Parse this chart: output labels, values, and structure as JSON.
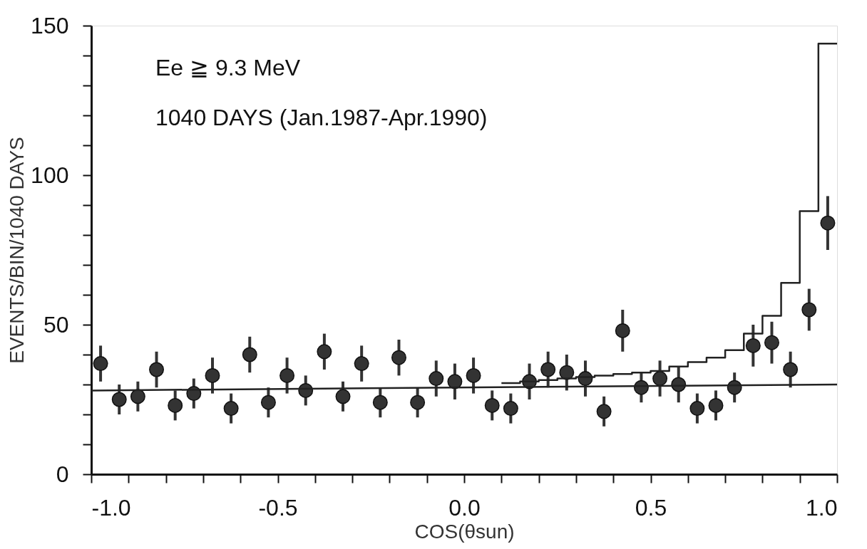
{
  "chart_data": {
    "type": "scatter",
    "xlabel": "COS(θsun)",
    "ylabel": "EVENTS/BIN/1040 DAYS",
    "annotations": [
      "Ee ≧ 9.3 MeV",
      "1040 DAYS (Jan.1987-Apr.1990)"
    ],
    "xlim": [
      -1.0,
      1.0
    ],
    "ylim": [
      0,
      150
    ],
    "xticks": [
      {
        "value": -1.0,
        "label": "-1.0"
      },
      {
        "value": -0.9,
        "label": null
      },
      {
        "value": -0.8,
        "label": null
      },
      {
        "value": -0.7,
        "label": null
      },
      {
        "value": -0.6,
        "label": null
      },
      {
        "value": -0.5,
        "label": "-0.5"
      },
      {
        "value": -0.4,
        "label": null
      },
      {
        "value": -0.3,
        "label": null
      },
      {
        "value": -0.2,
        "label": null
      },
      {
        "value": -0.1,
        "label": null
      },
      {
        "value": 0.0,
        "label": "0.0"
      },
      {
        "value": 0.1,
        "label": null
      },
      {
        "value": 0.2,
        "label": null
      },
      {
        "value": 0.3,
        "label": null
      },
      {
        "value": 0.4,
        "label": null
      },
      {
        "value": 0.5,
        "label": "0.5"
      },
      {
        "value": 0.6,
        "label": null
      },
      {
        "value": 0.7,
        "label": null
      },
      {
        "value": 0.8,
        "label": null
      },
      {
        "value": 0.9,
        "label": null
      },
      {
        "value": 1.0,
        "label": "1.0"
      }
    ],
    "yticks": [
      0,
      {
        "value": 10,
        "label": null
      },
      {
        "value": 20,
        "label": null
      },
      {
        "value": 30,
        "label": null
      },
      {
        "value": 40,
        "label": null
      },
      50,
      {
        "value": 60,
        "label": null
      },
      {
        "value": 70,
        "label": null
      },
      {
        "value": 80,
        "label": null
      },
      {
        "value": 90,
        "label": null
      },
      100,
      {
        "value": 110,
        "label": null
      },
      {
        "value": 120,
        "label": null
      },
      {
        "value": 130,
        "label": null
      },
      {
        "value": 140,
        "label": null
      },
      150
    ],
    "grid": false,
    "marker": "circle",
    "series": [
      {
        "color": "#333333",
        "x": [
          -0.975,
          -0.925,
          -0.875,
          -0.825,
          -0.775,
          -0.725,
          -0.675,
          -0.625,
          -0.575,
          -0.525,
          -0.475,
          -0.425,
          -0.375,
          -0.325,
          -0.275,
          -0.225,
          -0.175,
          -0.125,
          -0.075,
          -0.025,
          0.025,
          0.075,
          0.125,
          0.175,
          0.225,
          0.275,
          0.325,
          0.375,
          0.425,
          0.475,
          0.525,
          0.575,
          0.625,
          0.675,
          0.725,
          0.775,
          0.825,
          0.875,
          0.925,
          0.975
        ],
        "values": [
          37,
          25,
          26,
          35,
          23,
          27,
          33,
          22,
          40,
          24,
          33,
          28,
          41,
          26,
          37,
          24,
          39,
          24,
          32,
          31,
          33,
          23,
          22,
          31,
          35,
          34,
          32,
          21,
          48,
          29,
          32,
          30,
          22,
          23,
          29,
          43,
          44,
          35,
          55,
          84
        ],
        "errors": [
          6,
          5,
          5,
          6,
          5,
          5,
          6,
          5,
          6,
          5,
          6,
          5,
          6,
          5,
          6,
          5,
          6,
          5,
          6,
          6,
          6,
          5,
          5,
          6,
          6,
          6,
          6,
          5,
          7,
          5,
          6,
          6,
          5,
          5,
          5,
          7,
          7,
          6,
          7,
          9
        ]
      },
      {
        "type": "line",
        "marker": "none",
        "color": "#222222",
        "x": [
          -1.0,
          1.0
        ],
        "values": [
          28,
          30
        ]
      },
      {
        "type": "step",
        "marker": "none",
        "color": "#222222",
        "x": [
          0.1,
          0.15,
          0.2,
          0.25,
          0.3,
          0.35,
          0.4,
          0.45,
          0.5,
          0.55,
          0.6,
          0.65,
          0.7,
          0.75,
          0.8,
          0.85,
          0.9,
          0.95,
          1.0
        ],
        "values": [
          30.5,
          31,
          31.5,
          32,
          32.5,
          33,
          33.5,
          34,
          34.5,
          36,
          37.5,
          39,
          41.5,
          47,
          53,
          64,
          88,
          144,
          144
        ]
      }
    ]
  }
}
